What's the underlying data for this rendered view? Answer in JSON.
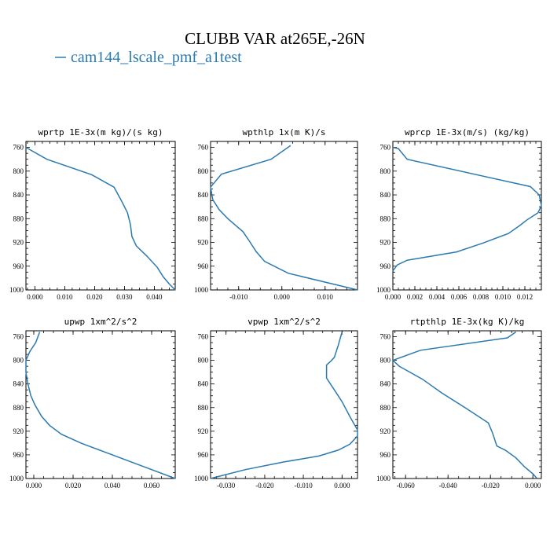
{
  "figure": {
    "title": "CLUBB VAR at265E,-26N",
    "legend_label": "cam144_lscale_pmf_a1test",
    "series_color": "#2a7ab0"
  },
  "chart_data": [
    {
      "type": "line",
      "title": "wprtp  1E-3x(m kg)/(s kg)",
      "xlim": [
        -0.003,
        0.047
      ],
      "ylim": [
        1000,
        750
      ],
      "xticks": [
        0.0,
        0.01,
        0.02,
        0.03,
        0.04
      ],
      "xtick_labels": [
        "0.000",
        "0.010",
        "0.020",
        "0.030",
        "0.040"
      ],
      "yticks": [
        760,
        800,
        840,
        880,
        920,
        960,
        1000
      ],
      "ytick_labels": [
        "760",
        "800",
        "840",
        "880",
        "920",
        "960",
        "1000"
      ],
      "x": [
        -0.003,
        0.004,
        0.019,
        0.0265,
        0.029,
        0.031,
        0.032,
        0.0325,
        0.034,
        0.0375,
        0.041,
        0.043,
        0.045,
        0.047
      ],
      "y": [
        760,
        780,
        806,
        827,
        850,
        870,
        890,
        910,
        926,
        943,
        962,
        978,
        990,
        1000
      ]
    },
    {
      "type": "line",
      "title": "wpthlp  1x(m K)/s",
      "xlim": [
        -0.0165,
        0.0175
      ],
      "ylim": [
        1000,
        750
      ],
      "xticks": [
        -0.01,
        0.0,
        0.01
      ],
      "xtick_labels": [
        "-0.010",
        "0.000",
        "0.010"
      ],
      "yticks": [
        760,
        800,
        840,
        880,
        920,
        960,
        1000
      ],
      "ytick_labels": [
        "760",
        "800",
        "840",
        "880",
        "920",
        "960",
        "1000"
      ],
      "x": [
        0.002,
        -0.0025,
        -0.014,
        -0.0165,
        -0.016,
        -0.0145,
        -0.0125,
        -0.009,
        -0.0075,
        -0.006,
        -0.004,
        0.0015,
        0.0175
      ],
      "y": [
        757,
        780,
        805,
        827,
        848,
        865,
        880,
        902,
        918,
        935,
        952,
        972,
        1000
      ]
    },
    {
      "type": "line",
      "title": "wprcp  1E-3x(m/s) (kg/kg)",
      "xlim": [
        0.0,
        0.0135
      ],
      "ylim": [
        1000,
        750
      ],
      "xticks": [
        0.0,
        0.002,
        0.004,
        0.006,
        0.008,
        0.01,
        0.012
      ],
      "xtick_labels": [
        "0.000",
        "0.002",
        "0.004",
        "0.006",
        "0.008",
        "0.010",
        "0.012"
      ],
      "yticks": [
        760,
        800,
        840,
        880,
        920,
        960,
        1000
      ],
      "ytick_labels": [
        "760",
        "800",
        "840",
        "880",
        "920",
        "960",
        "1000"
      ],
      "x": [
        0.0,
        0.0005,
        0.0013,
        0.0125,
        0.0133,
        0.0135,
        0.0132,
        0.0122,
        0.0115,
        0.0105,
        0.0082,
        0.0058,
        0.0013,
        0.0004,
        0.0
      ],
      "y": [
        760,
        762,
        780,
        826,
        840,
        858,
        870,
        882,
        892,
        905,
        921,
        936,
        950,
        958,
        968
      ]
    },
    {
      "type": "line",
      "title": "upwp  1xm^2/s^2",
      "xlim": [
        -0.004,
        0.072
      ],
      "ylim": [
        1000,
        750
      ],
      "xticks": [
        0.0,
        0.02,
        0.04,
        0.06
      ],
      "xtick_labels": [
        "0.000",
        "0.020",
        "0.040",
        "0.060"
      ],
      "yticks": [
        760,
        800,
        840,
        880,
        920,
        960,
        1000
      ],
      "ytick_labels": [
        "760",
        "800",
        "840",
        "880",
        "920",
        "960",
        "1000"
      ],
      "x": [
        0.003,
        0.001,
        -0.002,
        -0.004,
        -0.004,
        -0.003,
        -0.0015,
        0.0005,
        0.004,
        0.008,
        0.014,
        0.024,
        0.036,
        0.048,
        0.06,
        0.072
      ],
      "y": [
        752,
        770,
        785,
        800,
        820,
        840,
        860,
        875,
        895,
        910,
        925,
        940,
        955,
        970,
        985,
        1000
      ]
    },
    {
      "type": "line",
      "title": "vpwp  1xm^2/s^2",
      "xlim": [
        -0.034,
        0.004
      ],
      "ylim": [
        1000,
        750
      ],
      "xticks": [
        -0.03,
        -0.02,
        -0.01,
        0.0
      ],
      "xtick_labels": [
        "-0.030",
        "-0.020",
        "-0.010",
        "0.000"
      ],
      "yticks": [
        760,
        800,
        840,
        880,
        920,
        960,
        1000
      ],
      "ytick_labels": [
        "760",
        "800",
        "840",
        "880",
        "920",
        "960",
        "1000"
      ],
      "x": [
        0.0,
        -0.001,
        -0.002,
        -0.003,
        -0.004,
        -0.004,
        -0.002,
        0.0,
        0.002,
        0.004,
        0.004,
        0.002,
        -0.001,
        -0.006,
        -0.015,
        -0.025,
        -0.034
      ],
      "y": [
        752,
        775,
        795,
        802,
        808,
        830,
        850,
        870,
        895,
        918,
        928,
        942,
        952,
        962,
        972,
        985,
        1000
      ]
    },
    {
      "type": "line",
      "title": "rtpthlp  1E-3x(kg K)/kg",
      "xlim": [
        -0.066,
        0.004
      ],
      "ylim": [
        1000,
        750
      ],
      "xticks": [
        -0.06,
        -0.04,
        -0.02,
        0.0
      ],
      "xtick_labels": [
        "-0.060",
        "-0.040",
        "-0.020",
        "0.000"
      ],
      "yticks": [
        760,
        800,
        840,
        880,
        920,
        960,
        1000
      ],
      "ytick_labels": [
        "760",
        "800",
        "840",
        "880",
        "920",
        "960",
        "1000"
      ],
      "x": [
        -0.008,
        -0.012,
        -0.053,
        -0.066,
        -0.063,
        -0.052,
        -0.043,
        -0.032,
        -0.021,
        -0.019,
        -0.017,
        -0.013,
        -0.008,
        -0.004,
        0.0,
        0.002
      ],
      "y": [
        752,
        762,
        783,
        800,
        810,
        832,
        855,
        880,
        906,
        923,
        945,
        952,
        965,
        980,
        992,
        1000
      ]
    }
  ]
}
